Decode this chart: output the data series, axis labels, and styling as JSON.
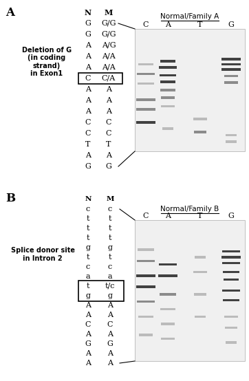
{
  "panel_A_label": "A",
  "panel_B_label": "B",
  "left_label_A": "Deletion of G\n(in coding\nstrand)\nin Exon1",
  "left_label_B": "Splice donor site\nin Intron 2",
  "title_A": "Normal/Family A",
  "title_B": "Normal/Family B",
  "gel_lanes_A": [
    "C",
    "A",
    "T",
    "G"
  ],
  "gel_lanes_B": [
    "C",
    "A",
    "T",
    "G"
  ],
  "seq_N_A": [
    "N",
    "G",
    "G",
    "A",
    "A",
    "A",
    "C",
    "A",
    "A",
    "A",
    "C",
    "C",
    "T",
    "A",
    "G"
  ],
  "seq_M_A": [
    "M",
    "G/G",
    "G/G",
    "A/G",
    "A/A",
    "A/A",
    "C/A",
    "A",
    "A",
    "A",
    "C",
    "C",
    "T",
    "A",
    "G"
  ],
  "boxed_row_A": 6,
  "seq_N_B": [
    "N",
    "c",
    "t",
    "t",
    "t",
    "g",
    "t",
    "c",
    "a",
    "t",
    "g",
    "A",
    "A",
    "C",
    "A",
    "G",
    "A",
    "A"
  ],
  "seq_M_B": [
    "M",
    "c",
    "t",
    "t",
    "t",
    "g",
    "t",
    "c",
    "a",
    "t/c",
    "g",
    "A",
    "A",
    "C",
    "A",
    "G",
    "A",
    "A"
  ],
  "boxed_rows_B": [
    9,
    10
  ],
  "bg_color": "#ffffff",
  "text_color": "#000000",
  "gel_bg": "#e8e8e8",
  "band_color_dark": "#222222",
  "band_color_med": "#555555",
  "band_color_light": "#888888"
}
